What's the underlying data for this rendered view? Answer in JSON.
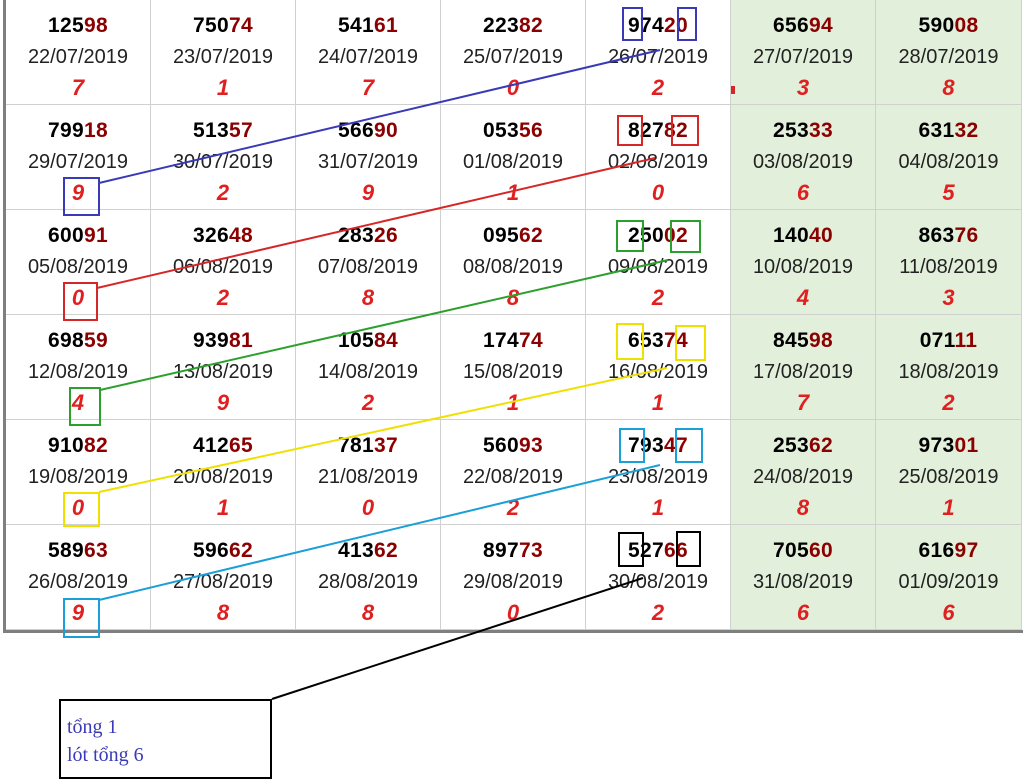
{
  "colors": {
    "lead_digits": "#000000",
    "tail_digits": "#8b0000",
    "sum": "#e02020",
    "weekend_bg": "#e2efda",
    "note_text": "#3a3ab8",
    "annotation_blue": "#3a3ab8",
    "annotation_red": "#d62728",
    "annotation_green": "#2ca02c",
    "annotation_yellow": "#f0e000",
    "annotation_cyan": "#1a9fd8",
    "annotation_black": "#000000"
  },
  "rows": [
    [
      {
        "num": "12598",
        "date": "22/07/2019",
        "sum": "7"
      },
      {
        "num": "75074",
        "date": "23/07/2019",
        "sum": "1"
      },
      {
        "num": "54161",
        "date": "24/07/2019",
        "sum": "7"
      },
      {
        "num": "22382",
        "date": "25/07/2019",
        "sum": "0"
      },
      {
        "num": "97420",
        "date": "26/07/2019",
        "sum": "2"
      },
      {
        "num": "65694",
        "date": "27/07/2019",
        "sum": "3"
      },
      {
        "num": "59008",
        "date": "28/07/2019",
        "sum": "8"
      }
    ],
    [
      {
        "num": "79918",
        "date": "29/07/2019",
        "sum": "9"
      },
      {
        "num": "51357",
        "date": "30/07/2019",
        "sum": "2"
      },
      {
        "num": "56690",
        "date": "31/07/2019",
        "sum": "9"
      },
      {
        "num": "05356",
        "date": "01/08/2019",
        "sum": "1"
      },
      {
        "num": "82782",
        "date": "02/08/2019",
        "sum": "0"
      },
      {
        "num": "25333",
        "date": "03/08/2019",
        "sum": "6"
      },
      {
        "num": "63132",
        "date": "04/08/2019",
        "sum": "5"
      }
    ],
    [
      {
        "num": "60091",
        "date": "05/08/2019",
        "sum": "0"
      },
      {
        "num": "32648",
        "date": "06/08/2019",
        "sum": "2"
      },
      {
        "num": "28326",
        "date": "07/08/2019",
        "sum": "8"
      },
      {
        "num": "09562",
        "date": "08/08/2019",
        "sum": "8"
      },
      {
        "num": "25002",
        "date": "09/08/2019",
        "sum": "2"
      },
      {
        "num": "14040",
        "date": "10/08/2019",
        "sum": "4"
      },
      {
        "num": "86376",
        "date": "11/08/2019",
        "sum": "3"
      }
    ],
    [
      {
        "num": "69859",
        "date": "12/08/2019",
        "sum": "4"
      },
      {
        "num": "93981",
        "date": "13/08/2019",
        "sum": "9"
      },
      {
        "num": "10584",
        "date": "14/08/2019",
        "sum": "2"
      },
      {
        "num": "17474",
        "date": "15/08/2019",
        "sum": "1"
      },
      {
        "num": "65374",
        "date": "16/08/2019",
        "sum": "1"
      },
      {
        "num": "84598",
        "date": "17/08/2019",
        "sum": "7"
      },
      {
        "num": "07111",
        "date": "18/08/2019",
        "sum": "2"
      }
    ],
    [
      {
        "num": "91082",
        "date": "19/08/2019",
        "sum": "0"
      },
      {
        "num": "41265",
        "date": "20/08/2019",
        "sum": "1"
      },
      {
        "num": "78137",
        "date": "21/08/2019",
        "sum": "0"
      },
      {
        "num": "56093",
        "date": "22/08/2019",
        "sum": "2"
      },
      {
        "num": "79347",
        "date": "23/08/2019",
        "sum": "1"
      },
      {
        "num": "25362",
        "date": "24/08/2019",
        "sum": "8"
      },
      {
        "num": "97301",
        "date": "25/08/2019",
        "sum": "1"
      }
    ],
    [
      {
        "num": "58963",
        "date": "26/08/2019",
        "sum": "9"
      },
      {
        "num": "59662",
        "date": "27/08/2019",
        "sum": "8"
      },
      {
        "num": "41362",
        "date": "28/08/2019",
        "sum": "8"
      },
      {
        "num": "89773",
        "date": "29/08/2019",
        "sum": "0"
      },
      {
        "num": "52766",
        "date": "30/08/2019",
        "sum": "2"
      },
      {
        "num": "70560",
        "date": "31/08/2019",
        "sum": "6"
      },
      {
        "num": "61697",
        "date": "01/09/2019",
        "sum": "6"
      }
    ]
  ],
  "note": {
    "line1": "tổng 1",
    "line2": "lót tổng 6"
  }
}
